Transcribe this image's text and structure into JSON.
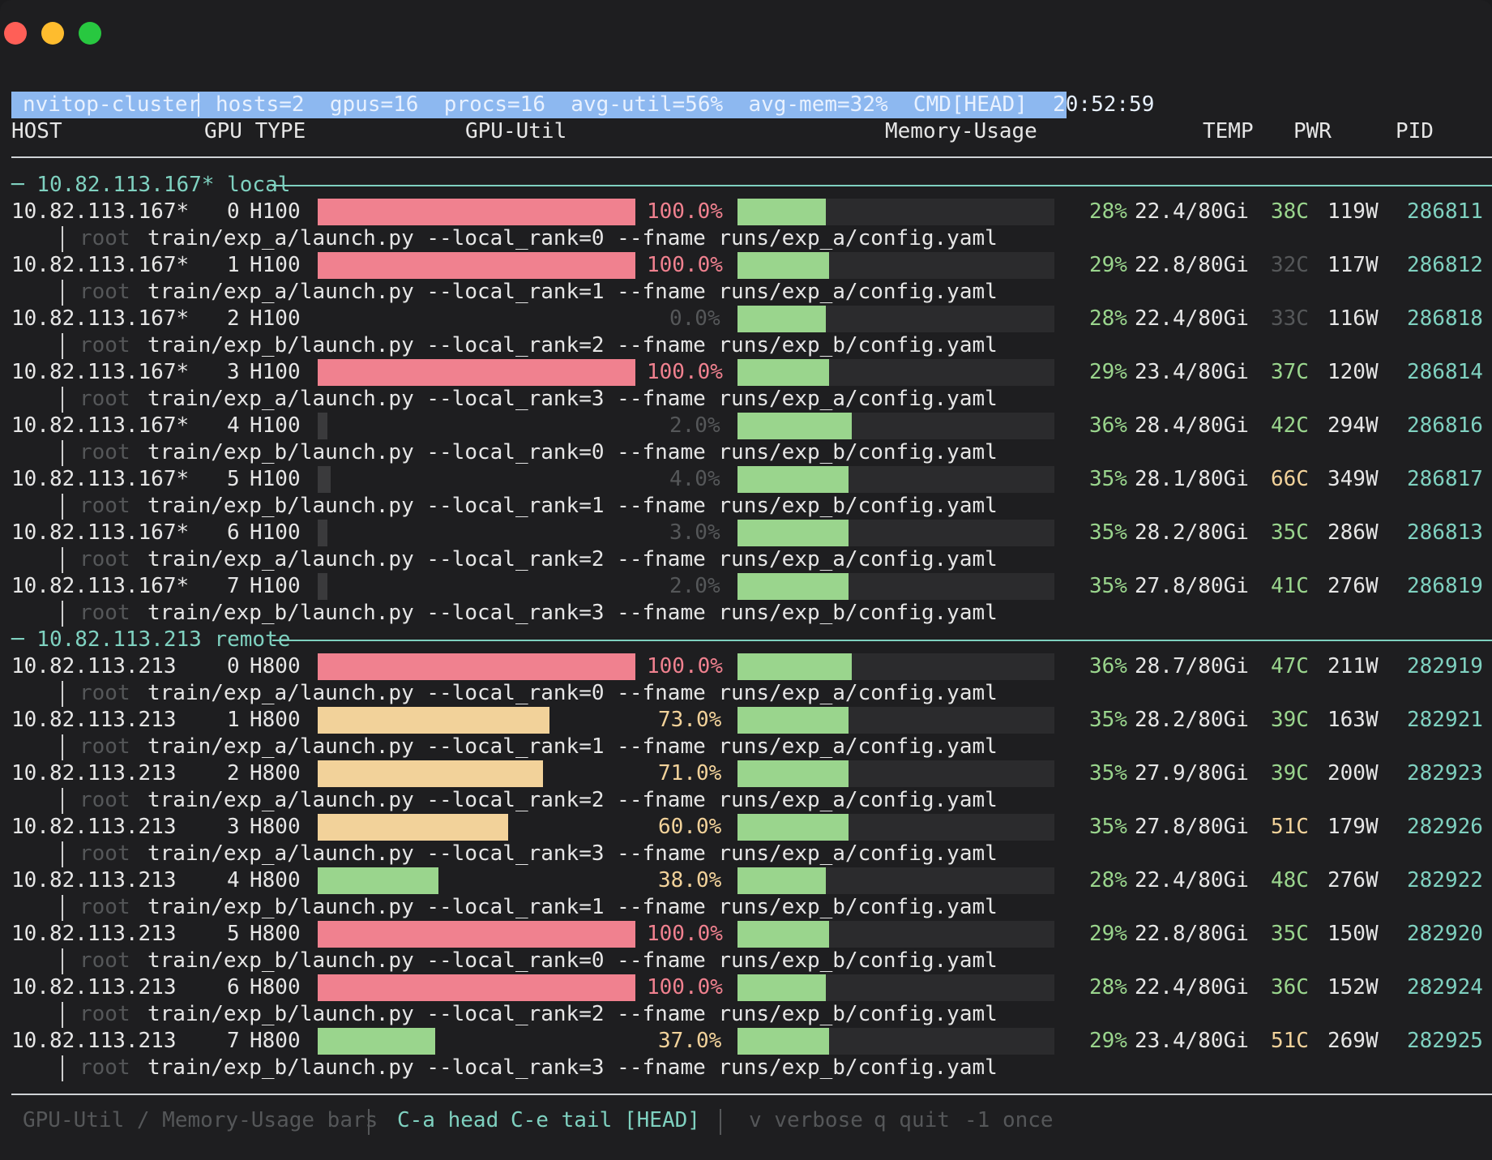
{
  "status_bar": {
    "app": "nvitop-cluster",
    "summary": "hosts=2  gpus=16  procs=16  avg-util=56%  avg-mem=32%  CMD[HEAD]  20:52:59"
  },
  "columns": {
    "host": "HOST",
    "gpu_type": "GPU TYPE",
    "gpu_util": "GPU-Util",
    "memory_usage": "Memory-Usage",
    "temp": "TEMP",
    "pwr": "PWR",
    "pid": "PID"
  },
  "colors": {
    "util_high": "#f0818f",
    "util_mid": "#f2d29a",
    "util_low_green": "#9ad58d",
    "util_idle": "#3a3a3c",
    "mem_bar": "#9ad58d",
    "accent_teal": "#7fd1c0",
    "status_bg": "#8db8f0"
  },
  "groups": [
    {
      "label": "─ 10.82.113.167* local",
      "rows": [
        {
          "host": "10.82.113.167*",
          "idx": "0",
          "type": "H100",
          "util": 100,
          "util_text": "100.0%",
          "mem_pct": 28,
          "mem_pct_text": "28%",
          "mem": "22.4/80Gi",
          "temp": "38C",
          "temp_level": "ok",
          "pwr": "119W",
          "pid": "286811",
          "user": "root",
          "cmd": "train/exp_a/launch.py --local_rank=0 --fname runs/exp_a/config.yaml"
        },
        {
          "host": "10.82.113.167*",
          "idx": "1",
          "type": "H100",
          "util": 100,
          "util_text": "100.0%",
          "mem_pct": 29,
          "mem_pct_text": "29%",
          "mem": "22.8/80Gi",
          "temp": "32C",
          "temp_level": "dim",
          "pwr": "117W",
          "pid": "286812",
          "user": "root",
          "cmd": "train/exp_a/launch.py --local_rank=1 --fname runs/exp_a/config.yaml"
        },
        {
          "host": "10.82.113.167*",
          "idx": "2",
          "type": "H100",
          "util": 0,
          "util_text": "0.0%",
          "mem_pct": 28,
          "mem_pct_text": "28%",
          "mem": "22.4/80Gi",
          "temp": "33C",
          "temp_level": "dim",
          "pwr": "116W",
          "pid": "286818",
          "user": "root",
          "cmd": "train/exp_b/launch.py --local_rank=2 --fname runs/exp_b/config.yaml"
        },
        {
          "host": "10.82.113.167*",
          "idx": "3",
          "type": "H100",
          "util": 100,
          "util_text": "100.0%",
          "mem_pct": 29,
          "mem_pct_text": "29%",
          "mem": "23.4/80Gi",
          "temp": "37C",
          "temp_level": "ok",
          "pwr": "120W",
          "pid": "286814",
          "user": "root",
          "cmd": "train/exp_a/launch.py --local_rank=3 --fname runs/exp_a/config.yaml"
        },
        {
          "host": "10.82.113.167*",
          "idx": "4",
          "type": "H100",
          "util": 2,
          "util_text": "2.0%",
          "mem_pct": 36,
          "mem_pct_text": "36%",
          "mem": "28.4/80Gi",
          "temp": "42C",
          "temp_level": "ok",
          "pwr": "294W",
          "pid": "286816",
          "user": "root",
          "cmd": "train/exp_b/launch.py --local_rank=0 --fname runs/exp_b/config.yaml"
        },
        {
          "host": "10.82.113.167*",
          "idx": "5",
          "type": "H100",
          "util": 4,
          "util_text": "4.0%",
          "mem_pct": 35,
          "mem_pct_text": "35%",
          "mem": "28.1/80Gi",
          "temp": "66C",
          "temp_level": "warm",
          "pwr": "349W",
          "pid": "286817",
          "user": "root",
          "cmd": "train/exp_b/launch.py --local_rank=1 --fname runs/exp_b/config.yaml"
        },
        {
          "host": "10.82.113.167*",
          "idx": "6",
          "type": "H100",
          "util": 3,
          "util_text": "3.0%",
          "mem_pct": 35,
          "mem_pct_text": "35%",
          "mem": "28.2/80Gi",
          "temp": "35C",
          "temp_level": "ok",
          "pwr": "286W",
          "pid": "286813",
          "user": "root",
          "cmd": "train/exp_a/launch.py --local_rank=2 --fname runs/exp_a/config.yaml"
        },
        {
          "host": "10.82.113.167*",
          "idx": "7",
          "type": "H100",
          "util": 2,
          "util_text": "2.0%",
          "mem_pct": 35,
          "mem_pct_text": "35%",
          "mem": "27.8/80Gi",
          "temp": "41C",
          "temp_level": "ok",
          "pwr": "276W",
          "pid": "286819",
          "user": "root",
          "cmd": "train/exp_b/launch.py --local_rank=3 --fname runs/exp_b/config.yaml"
        }
      ]
    },
    {
      "label": "─ 10.82.113.213 remote",
      "rows": [
        {
          "host": "10.82.113.213",
          "idx": "0",
          "type": "H800",
          "util": 100,
          "util_text": "100.0%",
          "mem_pct": 36,
          "mem_pct_text": "36%",
          "mem": "28.7/80Gi",
          "temp": "47C",
          "temp_level": "ok",
          "pwr": "211W",
          "pid": "282919",
          "user": "root",
          "cmd": "train/exp_a/launch.py --local_rank=0 --fname runs/exp_a/config.yaml"
        },
        {
          "host": "10.82.113.213",
          "idx": "1",
          "type": "H800",
          "util": 73,
          "util_text": "73.0%",
          "mem_pct": 35,
          "mem_pct_text": "35%",
          "mem": "28.2/80Gi",
          "temp": "39C",
          "temp_level": "ok",
          "pwr": "163W",
          "pid": "282921",
          "user": "root",
          "cmd": "train/exp_a/launch.py --local_rank=1 --fname runs/exp_a/config.yaml"
        },
        {
          "host": "10.82.113.213",
          "idx": "2",
          "type": "H800",
          "util": 71,
          "util_text": "71.0%",
          "mem_pct": 35,
          "mem_pct_text": "35%",
          "mem": "27.9/80Gi",
          "temp": "39C",
          "temp_level": "ok",
          "pwr": "200W",
          "pid": "282923",
          "user": "root",
          "cmd": "train/exp_a/launch.py --local_rank=2 --fname runs/exp_a/config.yaml"
        },
        {
          "host": "10.82.113.213",
          "idx": "3",
          "type": "H800",
          "util": 60,
          "util_text": "60.0%",
          "mem_pct": 35,
          "mem_pct_text": "35%",
          "mem": "27.8/80Gi",
          "temp": "51C",
          "temp_level": "warm",
          "pwr": "179W",
          "pid": "282926",
          "user": "root",
          "cmd": "train/exp_a/launch.py --local_rank=3 --fname runs/exp_a/config.yaml"
        },
        {
          "host": "10.82.113.213",
          "idx": "4",
          "type": "H800",
          "util": 38,
          "util_text": "38.0%",
          "mem_pct": 28,
          "mem_pct_text": "28%",
          "mem": "22.4/80Gi",
          "temp": "48C",
          "temp_level": "ok",
          "pwr": "276W",
          "pid": "282922",
          "user": "root",
          "cmd": "train/exp_b/launch.py --local_rank=1 --fname runs/exp_b/config.yaml"
        },
        {
          "host": "10.82.113.213",
          "idx": "5",
          "type": "H800",
          "util": 100,
          "util_text": "100.0%",
          "mem_pct": 29,
          "mem_pct_text": "29%",
          "mem": "22.8/80Gi",
          "temp": "35C",
          "temp_level": "ok",
          "pwr": "150W",
          "pid": "282920",
          "user": "root",
          "cmd": "train/exp_b/launch.py --local_rank=0 --fname runs/exp_b/config.yaml"
        },
        {
          "host": "10.82.113.213",
          "idx": "6",
          "type": "H800",
          "util": 100,
          "util_text": "100.0%",
          "mem_pct": 28,
          "mem_pct_text": "28%",
          "mem": "22.4/80Gi",
          "temp": "36C",
          "temp_level": "ok",
          "pwr": "152W",
          "pid": "282924",
          "user": "root",
          "cmd": "train/exp_b/launch.py --local_rank=2 --fname runs/exp_b/config.yaml"
        },
        {
          "host": "10.82.113.213",
          "idx": "7",
          "type": "H800",
          "util": 37,
          "util_text": "37.0%",
          "mem_pct": 29,
          "mem_pct_text": "29%",
          "mem": "23.4/80Gi",
          "temp": "51C",
          "temp_level": "warm",
          "pwr": "269W",
          "pid": "282925",
          "user": "root",
          "cmd": "train/exp_b/launch.py --local_rank=3 --fname runs/exp_b/config.yaml"
        }
      ]
    }
  ],
  "footer": {
    "legend": "GPU-Util / Memory-Usage bars",
    "head": "C-a head",
    "tail": "C-e tail",
    "mode": "[HEAD]",
    "verbose": "v verbose",
    "quit": "q quit",
    "once": "-1 once"
  }
}
